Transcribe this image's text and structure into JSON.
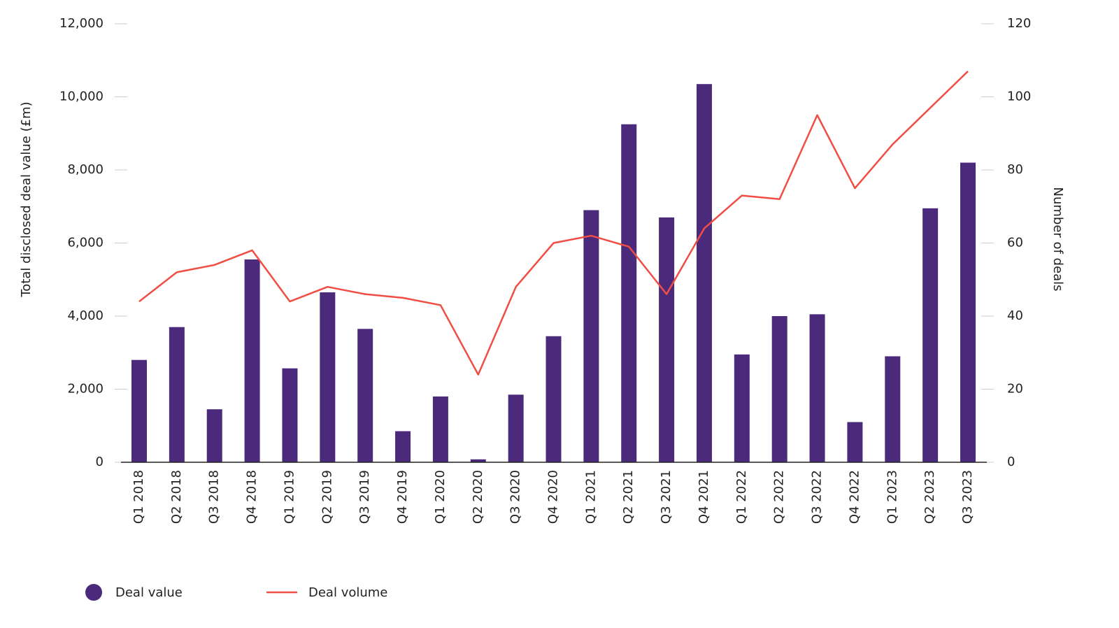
{
  "chart_data": {
    "type": "bar_line",
    "categories": [
      "Q1 2018",
      "Q2 2018",
      "Q3 2018",
      "Q4 2018",
      "Q1 2019",
      "Q2 2019",
      "Q3 2019",
      "Q4 2019",
      "Q1 2020",
      "Q2 2020",
      "Q3 2020",
      "Q4 2020",
      "Q1 2021",
      "Q2 2021",
      "Q3 2021",
      "Q4 2021",
      "Q1 2022",
      "Q2 2022",
      "Q3 2022",
      "Q4 2022",
      "Q1 2023",
      "Q2 2023",
      "Q3 2023"
    ],
    "series": [
      {
        "name": "Deal value",
        "type": "bar",
        "color": "#4b2a7b",
        "values": [
          2800,
          3700,
          1450,
          5550,
          2570,
          4650,
          3650,
          850,
          1800,
          80,
          1850,
          3450,
          6900,
          9250,
          6700,
          10350,
          2950,
          4000,
          4050,
          1100,
          2900,
          6950,
          8200
        ]
      },
      {
        "name": "Deal volume",
        "type": "line",
        "axis": "y2",
        "color": "#f04e45",
        "values": [
          44,
          52,
          54,
          58,
          44,
          48,
          46,
          45,
          43,
          24,
          48,
          60,
          62,
          59,
          46,
          64,
          73,
          72,
          95,
          75,
          87,
          97,
          107
        ]
      }
    ],
    "ylabel": "Total disclosed deal value (£m)",
    "y2label": "Number of deals",
    "ylim": [
      0,
      12000
    ],
    "yticks": [
      0,
      {
        "value": 2000,
        "label": "2,000"
      },
      {
        "value": 4000,
        "label": "4,000"
      },
      {
        "value": 6000,
        "label": "6,000"
      },
      {
        "value": 8000,
        "label": "8,000"
      },
      {
        "value": 10000,
        "label": "10,000"
      },
      {
        "value": 12000,
        "label": "12,000"
      }
    ],
    "y2lim": [
      0,
      120
    ],
    "y2ticks": [
      0,
      20,
      40,
      60,
      80,
      100,
      120
    ]
  }
}
